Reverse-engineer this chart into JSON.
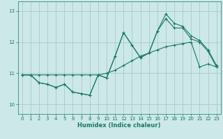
{
  "xlabel": "Humidex (Indice chaleur)",
  "xlim": [
    -0.5,
    23.5
  ],
  "ylim": [
    9.7,
    13.3
  ],
  "xticks": [
    0,
    1,
    2,
    3,
    4,
    5,
    6,
    7,
    8,
    9,
    10,
    11,
    12,
    13,
    14,
    15,
    16,
    17,
    18,
    19,
    20,
    21,
    22,
    23
  ],
  "yticks": [
    10,
    11,
    12,
    13
  ],
  "background_color": "#cce8e8",
  "grid_color": "#aacaca",
  "line_color": "#1a7868",
  "line1_x": [
    0,
    1,
    2,
    3,
    4,
    5,
    6,
    7,
    8,
    9,
    10,
    11,
    12,
    13,
    14,
    15,
    16,
    17,
    18,
    19,
    20,
    21,
    22,
    23
  ],
  "line1_y": [
    10.95,
    10.95,
    10.7,
    10.65,
    10.55,
    10.65,
    10.4,
    10.35,
    10.3,
    10.95,
    10.85,
    11.55,
    12.3,
    11.9,
    11.5,
    11.65,
    12.35,
    12.75,
    12.45,
    12.45,
    12.1,
    12.0,
    11.7,
    11.2
  ],
  "line2_x": [
    0,
    1,
    2,
    3,
    4,
    5,
    6,
    7,
    8,
    9,
    10,
    11,
    12,
    13,
    14,
    15,
    16,
    17,
    18,
    19,
    20,
    21,
    22,
    23
  ],
  "line2_y": [
    10.95,
    10.95,
    10.95,
    10.95,
    10.95,
    10.95,
    10.95,
    10.95,
    10.95,
    10.95,
    11.0,
    11.1,
    11.25,
    11.4,
    11.55,
    11.65,
    11.75,
    11.85,
    11.9,
    11.95,
    12.0,
    11.2,
    11.3,
    11.2
  ],
  "line3_x": [
    0,
    1,
    2,
    3,
    4,
    5,
    6,
    7,
    8,
    9,
    10,
    11,
    12,
    13,
    14,
    15,
    16,
    17,
    18,
    19,
    20,
    21,
    22,
    23
  ],
  "line3_y": [
    10.95,
    10.95,
    10.7,
    10.65,
    10.55,
    10.65,
    10.4,
    10.35,
    10.3,
    10.95,
    10.85,
    11.55,
    12.3,
    11.9,
    11.5,
    11.65,
    12.35,
    12.9,
    12.6,
    12.5,
    12.2,
    12.05,
    11.75,
    11.25
  ]
}
